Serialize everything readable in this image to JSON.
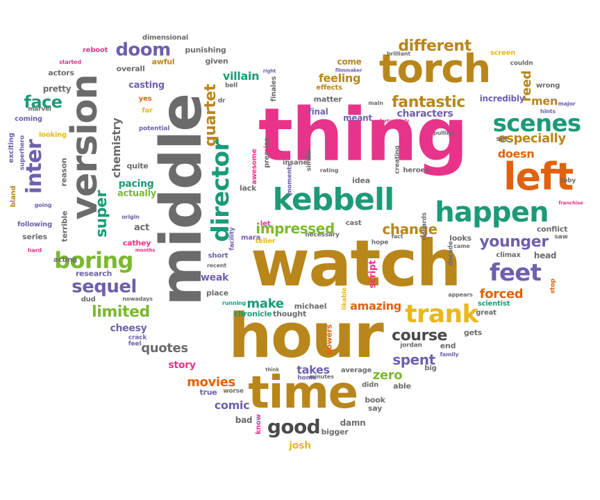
{
  "palette": {
    "pink": "#e8338b",
    "gold": "#b8861b",
    "gray": "#6b6b6b",
    "teal": "#1d9a78",
    "orange": "#e0620f",
    "green": "#7cb82f",
    "purple": "#6f5fae",
    "yellow": "#e8b81f",
    "darkgray": "#4a4a4a"
  },
  "words": [
    {
      "t": "thing"
    },
    {
      "t": "watch"
    },
    {
      "t": "middle"
    },
    {
      "t": "hour"
    },
    {
      "t": "torch"
    },
    {
      "t": "time"
    },
    {
      "t": "left"
    },
    {
      "t": "kebbell"
    },
    {
      "t": "version"
    },
    {
      "t": "happen"
    },
    {
      "t": "scenes"
    },
    {
      "t": "trank"
    },
    {
      "t": "feet"
    },
    {
      "t": "different"
    },
    {
      "t": "director"
    },
    {
      "t": "inter"
    },
    {
      "t": "boring"
    },
    {
      "t": "sequel"
    },
    {
      "t": "doom"
    },
    {
      "t": "fantastic"
    },
    {
      "t": "good"
    },
    {
      "t": "course"
    },
    {
      "t": "younger"
    },
    {
      "t": "impressed"
    },
    {
      "t": "change"
    },
    {
      "t": "forced"
    },
    {
      "t": "especially"
    },
    {
      "t": "quartet"
    },
    {
      "t": "limited"
    },
    {
      "t": "amazing"
    },
    {
      "t": "face"
    },
    {
      "t": "make"
    },
    {
      "t": "spent"
    },
    {
      "t": "zero"
    },
    {
      "t": "movies"
    },
    {
      "t": "quotes"
    },
    {
      "t": "super"
    },
    {
      "t": "chemistry"
    },
    {
      "t": "reed"
    },
    {
      "t": "men"
    },
    {
      "t": "doesn"
    },
    {
      "t": "comic"
    },
    {
      "t": "takes"
    },
    {
      "t": "feeling"
    },
    {
      "t": "villain"
    },
    {
      "t": "characters"
    },
    {
      "t": "cheesy"
    },
    {
      "t": "story"
    },
    {
      "t": "weak"
    },
    {
      "t": "josh"
    },
    {
      "t": "bad"
    },
    {
      "t": "pacing"
    },
    {
      "t": "actually"
    },
    {
      "t": "casting"
    },
    {
      "t": "act"
    },
    {
      "t": "idea"
    },
    {
      "t": "lack"
    },
    {
      "t": "matter"
    },
    {
      "t": "final"
    },
    {
      "t": "meant"
    },
    {
      "t": "come"
    },
    {
      "t": "head"
    },
    {
      "t": "place"
    },
    {
      "t": "michael"
    },
    {
      "t": "chronicle"
    },
    {
      "t": "thought"
    },
    {
      "t": "research"
    },
    {
      "t": "incredibly"
    },
    {
      "t": "pretty"
    },
    {
      "t": "overall"
    },
    {
      "t": "actors"
    },
    {
      "t": "quite"
    },
    {
      "t": "series"
    },
    {
      "t": "reason"
    },
    {
      "t": "terrible"
    },
    {
      "t": "coming"
    },
    {
      "t": "marvel"
    },
    {
      "t": "dimensional"
    },
    {
      "t": "punishing"
    },
    {
      "t": "given"
    },
    {
      "t": "awful"
    },
    {
      "t": "reboot"
    },
    {
      "t": "started"
    },
    {
      "t": "yes"
    },
    {
      "t": "far"
    },
    {
      "t": "potential"
    },
    {
      "t": "cathey"
    },
    {
      "t": "origin"
    },
    {
      "t": "exciting"
    },
    {
      "t": "superhero"
    },
    {
      "t": "looking"
    },
    {
      "t": "bland"
    },
    {
      "t": "going"
    },
    {
      "t": "following"
    },
    {
      "t": "hard"
    },
    {
      "t": "acting"
    },
    {
      "t": "dud"
    },
    {
      "t": "nowadays"
    },
    {
      "t": "crack"
    },
    {
      "t": "feel"
    },
    {
      "t": "short"
    },
    {
      "t": "recent"
    },
    {
      "t": "running"
    },
    {
      "t": "mara"
    },
    {
      "t": "facility"
    },
    {
      "t": "teller"
    },
    {
      "t": "let"
    },
    {
      "t": "insane"
    },
    {
      "t": "premise"
    },
    {
      "t": "awesome"
    },
    {
      "t": "moments"
    },
    {
      "t": "similar"
    },
    {
      "t": "rating"
    },
    {
      "t": "finales"
    },
    {
      "t": "bell"
    },
    {
      "t": "dr"
    },
    {
      "t": "right"
    },
    {
      "t": "effects"
    },
    {
      "t": "filmmaker"
    },
    {
      "t": "main"
    },
    {
      "t": "unfortunately"
    },
    {
      "t": "brilliant"
    },
    {
      "t": "screen"
    },
    {
      "t": "couldn"
    },
    {
      "t": "wrong"
    },
    {
      "t": "major"
    },
    {
      "t": "hints"
    },
    {
      "t": "set"
    },
    {
      "t": "pulling"
    },
    {
      "t": "heroes"
    },
    {
      "t": "creating"
    },
    {
      "t": "toby"
    },
    {
      "t": "franchise"
    },
    {
      "t": "conflict"
    },
    {
      "t": "saw"
    },
    {
      "t": "climax"
    },
    {
      "t": "looks"
    },
    {
      "t": "came"
    },
    {
      "t": "decade"
    },
    {
      "t": "richards"
    },
    {
      "t": "hope"
    },
    {
      "t": "fact"
    },
    {
      "t": "cast"
    },
    {
      "t": "necessary"
    },
    {
      "t": "appears"
    },
    {
      "t": "scientist"
    },
    {
      "t": "great"
    },
    {
      "t": "stop"
    },
    {
      "t": "gets"
    },
    {
      "t": "end"
    },
    {
      "t": "family"
    },
    {
      "t": "jordan"
    },
    {
      "t": "big"
    },
    {
      "t": "able"
    },
    {
      "t": "didn"
    },
    {
      "t": "average"
    },
    {
      "t": "minutes"
    },
    {
      "t": "home"
    },
    {
      "t": "think"
    },
    {
      "t": "true"
    },
    {
      "t": "worse"
    },
    {
      "t": "know"
    },
    {
      "t": "damn"
    },
    {
      "t": "bigger"
    },
    {
      "t": "book"
    },
    {
      "t": "say"
    },
    {
      "t": "script"
    },
    {
      "t": "likable"
    },
    {
      "t": "powers"
    },
    {
      "t": "months"
    }
  ]
}
